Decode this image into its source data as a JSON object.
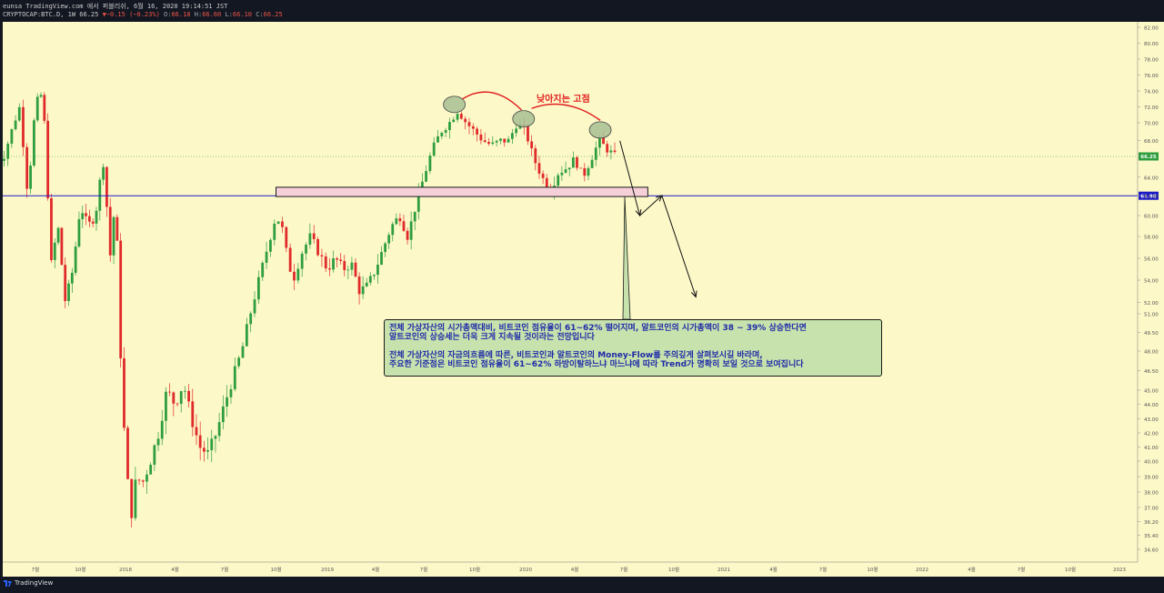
{
  "header": {
    "line1": "eunsa TradingView.com 에서 퍼블리쉬, 6월 16, 2020 19:14:51 JST",
    "symbol": "CRYPTOCAP:BTC.D, 1W 66.25",
    "change": "▼−0.15 (−0.23%)",
    "ohlc_prefix_o": "O:",
    "o": "66.18",
    "ohlc_prefix_h": "H:",
    "h": "66.60",
    "ohlc_prefix_l": "L:",
    "l": "66.10",
    "ohlc_prefix_c": "C:",
    "c": "66.25"
  },
  "annotations": {
    "peak_label": "낮아지는 고점",
    "note_line1": "전체 가상자산의 시가총액대비, 비트코인 점유율이 61~62% 떨어지며, 알트코인의 시가총액이 38 ~ 39% 상승한다면",
    "note_line2": "알트코인의 상승세는 더욱 크게 지속될 것이라는 전망입니다",
    "note_line3": "전체 가상자산의 자금의흐름에 따른, 비트코인과 알트코인의 Money-Flow를 주의깊게 살펴보시길 바라며,",
    "note_line4": "주요한 기준점은 비트코인 점유율이 61~62% 하방이탈하느냐 마느냐에 따라 Trend가 명확히 보일 것으로 보여집니다"
  },
  "footer": {
    "brand": "TradingView"
  },
  "colors": {
    "plot_bg": "#fdf8c8",
    "up": "#2e9e3e",
    "down": "#e02a2a",
    "hline": "#1c1cc8",
    "last_price": "#2e9e3e",
    "level_label": "#1c1cc8",
    "axis_text": "#555555"
  },
  "chart_data": {
    "type": "candlestick",
    "title": "",
    "symbol": "CRYPTOCAP:BTC.D",
    "interval": "1W",
    "y_ticks": [
      "82.00",
      "80.00",
      "78.00",
      "76.00",
      "74.00",
      "72.00",
      "70.00",
      "68.00",
      "64.00",
      "62.00",
      "60.00",
      "58.00",
      "56.00",
      "54.00",
      "52.00",
      "51.00",
      "49.50",
      "48.00",
      "46.50",
      "45.00",
      "44.00",
      "43.00",
      "42.00",
      "41.00",
      "40.00",
      "39.00",
      "38.00",
      "37.00",
      "36.20",
      "35.40",
      "34.60"
    ],
    "x_ticks": [
      "7월",
      "10월",
      "2018",
      "4월",
      "7월",
      "10월",
      "2019",
      "4월",
      "7월",
      "10월",
      "2020",
      "4월",
      "7월",
      "10월",
      "2021",
      "4월",
      "7월",
      "10월",
      "2022",
      "4월",
      "7월",
      "10월",
      "2023"
    ],
    "last_price_label": "66.25",
    "level_label": "61.98",
    "last_price": 66.25,
    "horizontal_level": 61.98,
    "support_zone": [
      61.9,
      62.9
    ],
    "price_path": [
      [
        "2017-05",
        66
      ],
      [
        "2017-06",
        72
      ],
      [
        "2017-06",
        62
      ],
      [
        "2017-07",
        72
      ],
      [
        "2017-07",
        74
      ],
      [
        "2017-07",
        69
      ],
      [
        "2017-08",
        55
      ],
      [
        "2017-08",
        59
      ],
      [
        "2017-09",
        52
      ],
      [
        "2017-09",
        55
      ],
      [
        "2017-10",
        61
      ],
      [
        "2017-10",
        59
      ],
      [
        "2017-11",
        60
      ],
      [
        "2017-11",
        66
      ],
      [
        "2017-12",
        56
      ],
      [
        "2017-12",
        62
      ],
      [
        "2017-12",
        48
      ],
      [
        "2018-01",
        40
      ],
      [
        "2018-01",
        36.5
      ],
      [
        "2018-01",
        39
      ],
      [
        "2018-02",
        38.5
      ],
      [
        "2018-02",
        40
      ],
      [
        "2018-03",
        42
      ],
      [
        "2018-03",
        45
      ],
      [
        "2018-04",
        44
      ],
      [
        "2018-04",
        45.5
      ],
      [
        "2018-05",
        43
      ],
      [
        "2018-05",
        41
      ],
      [
        "2018-06",
        40.5
      ],
      [
        "2018-06",
        42
      ],
      [
        "2018-07",
        44
      ],
      [
        "2018-07",
        46
      ],
      [
        "2018-08",
        48
      ],
      [
        "2018-08",
        51
      ],
      [
        "2018-09",
        54
      ],
      [
        "2018-09",
        57
      ],
      [
        "2018-10",
        60
      ],
      [
        "2018-10",
        59
      ],
      [
        "2018-10",
        56
      ],
      [
        "2018-11",
        54
      ],
      [
        "2018-11",
        56.5
      ],
      [
        "2018-12",
        58
      ],
      [
        "2018-12",
        56.5
      ],
      [
        "2019-01",
        55
      ],
      [
        "2019-01",
        56
      ],
      [
        "2019-02",
        55
      ],
      [
        "2019-02",
        55.5
      ],
      [
        "2019-03",
        53
      ],
      [
        "2019-03",
        53.5
      ],
      [
        "2019-04",
        55
      ],
      [
        "2019-04",
        57
      ],
      [
        "2019-05",
        59
      ],
      [
        "2019-05",
        60
      ],
      [
        "2019-06",
        58
      ],
      [
        "2019-06",
        61
      ],
      [
        "2019-07",
        64
      ],
      [
        "2019-07",
        67
      ],
      [
        "2019-08",
        69
      ],
      [
        "2019-08",
        70
      ],
      [
        "2019-09",
        71.5
      ],
      [
        "2019-09",
        70
      ],
      [
        "2019-10",
        69
      ],
      [
        "2019-10",
        68
      ],
      [
        "2019-11",
        67.5
      ],
      [
        "2019-11",
        68
      ],
      [
        "2019-12",
        68
      ],
      [
        "2019-12",
        70
      ],
      [
        "2020-01",
        69
      ],
      [
        "2020-01",
        66
      ],
      [
        "2020-02",
        64
      ],
      [
        "2020-02",
        62.5
      ],
      [
        "2020-03",
        64.5
      ],
      [
        "2020-03",
        65
      ],
      [
        "2020-04",
        66
      ],
      [
        "2020-04",
        64
      ],
      [
        "2020-05",
        66
      ],
      [
        "2020-05",
        68
      ],
      [
        "2020-06",
        67
      ],
      [
        "2020-06",
        66.25
      ]
    ]
  }
}
